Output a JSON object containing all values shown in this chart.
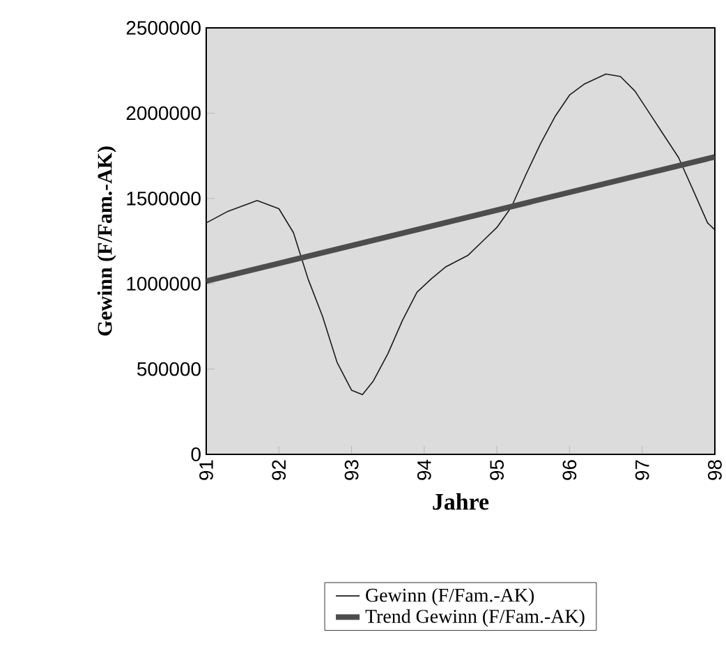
{
  "chart_data": {
    "type": "line",
    "xlabel": "Jahre",
    "ylabel": "Gewinn (F/Fam.-AK)",
    "xlim": [
      91,
      98
    ],
    "xticks": [
      91,
      92,
      93,
      94,
      95,
      96,
      97,
      98
    ],
    "ylim": [
      0,
      2500000
    ],
    "yticks": [
      0,
      500000,
      1000000,
      1500000,
      2000000,
      2500000
    ],
    "grid": false,
    "legend": "bottom",
    "marker": "none",
    "line_style": "solid",
    "series": [
      {
        "name": "Gewinn (F/Fam.-AK)",
        "color": "#1a1a1a",
        "x": [
          91,
          91.3,
          91.7,
          92.0,
          92.2,
          92.4,
          92.6,
          92.8,
          93.0,
          93.15,
          93.3,
          93.5,
          93.7,
          93.9,
          94.1,
          94.3,
          94.6,
          94.8,
          95.0,
          95.2,
          95.4,
          95.6,
          95.8,
          96.0,
          96.2,
          96.5,
          96.7,
          96.9,
          97.1,
          97.3,
          97.5,
          97.7,
          97.9,
          98.0
        ],
        "values": [
          1357000,
          1425000,
          1488000,
          1440000,
          1300000,
          1030000,
          810000,
          540000,
          376000,
          350000,
          430000,
          590000,
          785000,
          950000,
          1030000,
          1100000,
          1166000,
          1248000,
          1330000,
          1450000,
          1640000,
          1820000,
          1980000,
          2106000,
          2170000,
          2229000,
          2215000,
          2130000,
          2000000,
          1870000,
          1740000,
          1550000,
          1357000,
          1316000
        ]
      },
      {
        "name": "Trend Gewinn (F/Fam.-AK)",
        "color": "#4d4d4d",
        "x": [
          91,
          98
        ],
        "values": [
          1016000,
          1744000
        ]
      }
    ]
  }
}
